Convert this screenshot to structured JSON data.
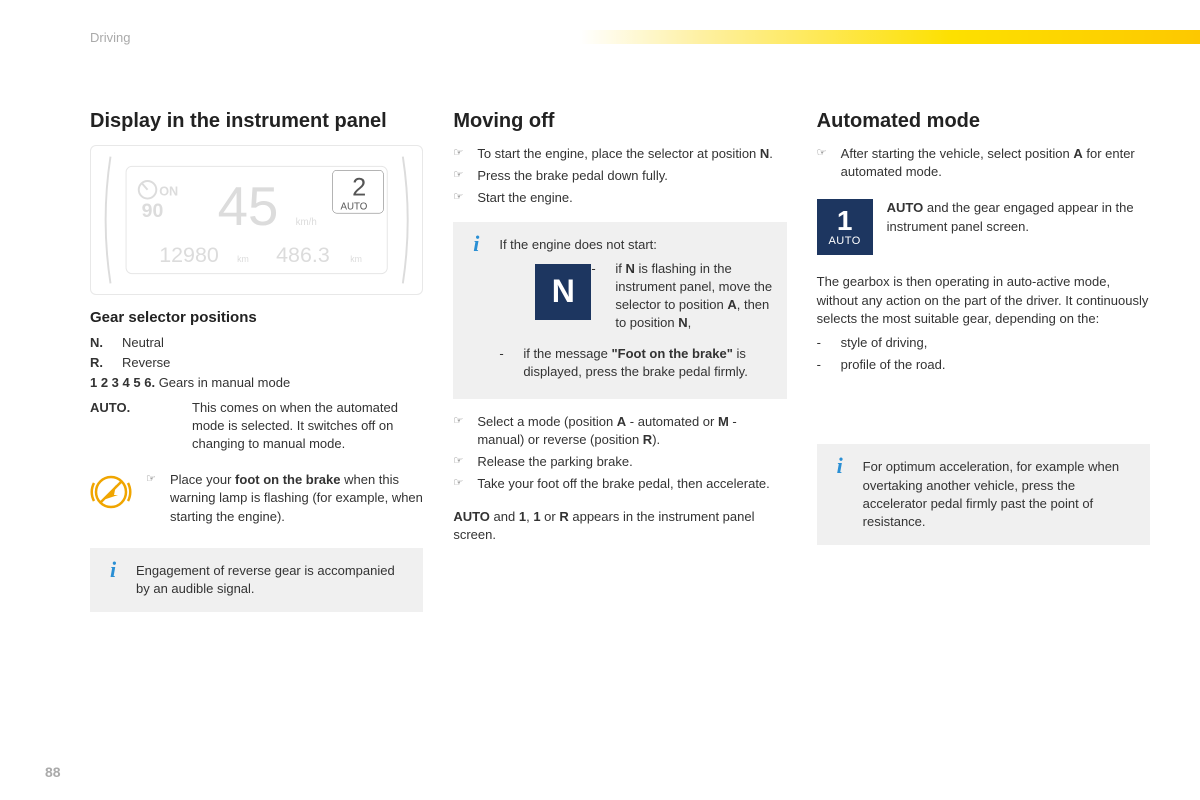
{
  "header": {
    "section": "Driving",
    "page_number": "88"
  },
  "accent_bar_gradient": [
    "#ffffff",
    "#fef0a0",
    "#fde000",
    "#fdc800"
  ],
  "info_icon_color": "#2a8fd4",
  "badge_bg": "#1d3660",
  "brake_lamp_color": "#f0a500",
  "col1": {
    "title": "Display in the instrument panel",
    "instrument": {
      "speed": "45",
      "speed_unit": "km/h",
      "gear": "2",
      "gear_mode": "AUTO",
      "odo": "12980",
      "odo_unit": "km",
      "trip": "486.3",
      "trip_unit": "km",
      "cruise_on": "ON",
      "cruise_set": "90"
    },
    "subheading": "Gear selector positions",
    "rows": [
      {
        "k": "N.",
        "v": "Neutral"
      },
      {
        "k": "R.",
        "v": "Reverse"
      }
    ],
    "gears_line_k": "1 2 3 4 5 6.",
    "gears_line_v": "Gears in manual mode",
    "auto_k": "AUTO.",
    "auto_v": "This comes on when the automated mode is selected. It switches off on changing to manual mode.",
    "brake_tip_pre": "Place your ",
    "brake_tip_bold": "foot on the brake",
    "brake_tip_post": " when this warning lamp is flashing (for example, when starting the engine).",
    "reverse_note": "Engagement of reverse gear is accompanied by an audible signal."
  },
  "col2": {
    "title": "Moving off",
    "steps1": [
      "To start the engine, place the selector at position <b>N</b>.",
      "Press the brake pedal down fully.",
      "Start the engine."
    ],
    "nostart_intro": "If the engine does not start:",
    "nostart_n": "if <b>N</b> is flashing in the instrument panel, move the selector to position <b>A</b>, then to position <b>N</b>,",
    "nostart_foot": "if the message <b>\"Foot on the brake\"</b> is displayed, press the brake pedal firmly.",
    "steps2": [
      "Select a mode (position <b>A</b> - automated or <b>M</b> - manual) or reverse (position <b>R</b>).",
      "Release the parking brake.",
      "Take your foot off the brake pedal, then accelerate."
    ],
    "footer": "<b>AUTO</b> and <b>1</b>, <b>1</b> or <b>R</b> appears in the instrument panel screen."
  },
  "col3": {
    "title": "Automated mode",
    "step": "After starting the vehicle, select position <b>A</b> for enter automated mode.",
    "badge_num": "1",
    "badge_lbl": "AUTO",
    "badge_text": "<b>AUTO</b> and the gear engaged appear in the instrument panel screen.",
    "body": "The gearbox is then operating in auto-active mode, without any action on the part of the driver. It continuously selects the most suitable gear, depending on the:",
    "depends": [
      "style of driving,",
      "profile of the road."
    ],
    "tip": "For optimum acceleration, for example when overtaking another vehicle, press the accelerator pedal firmly past the point of resistance."
  }
}
